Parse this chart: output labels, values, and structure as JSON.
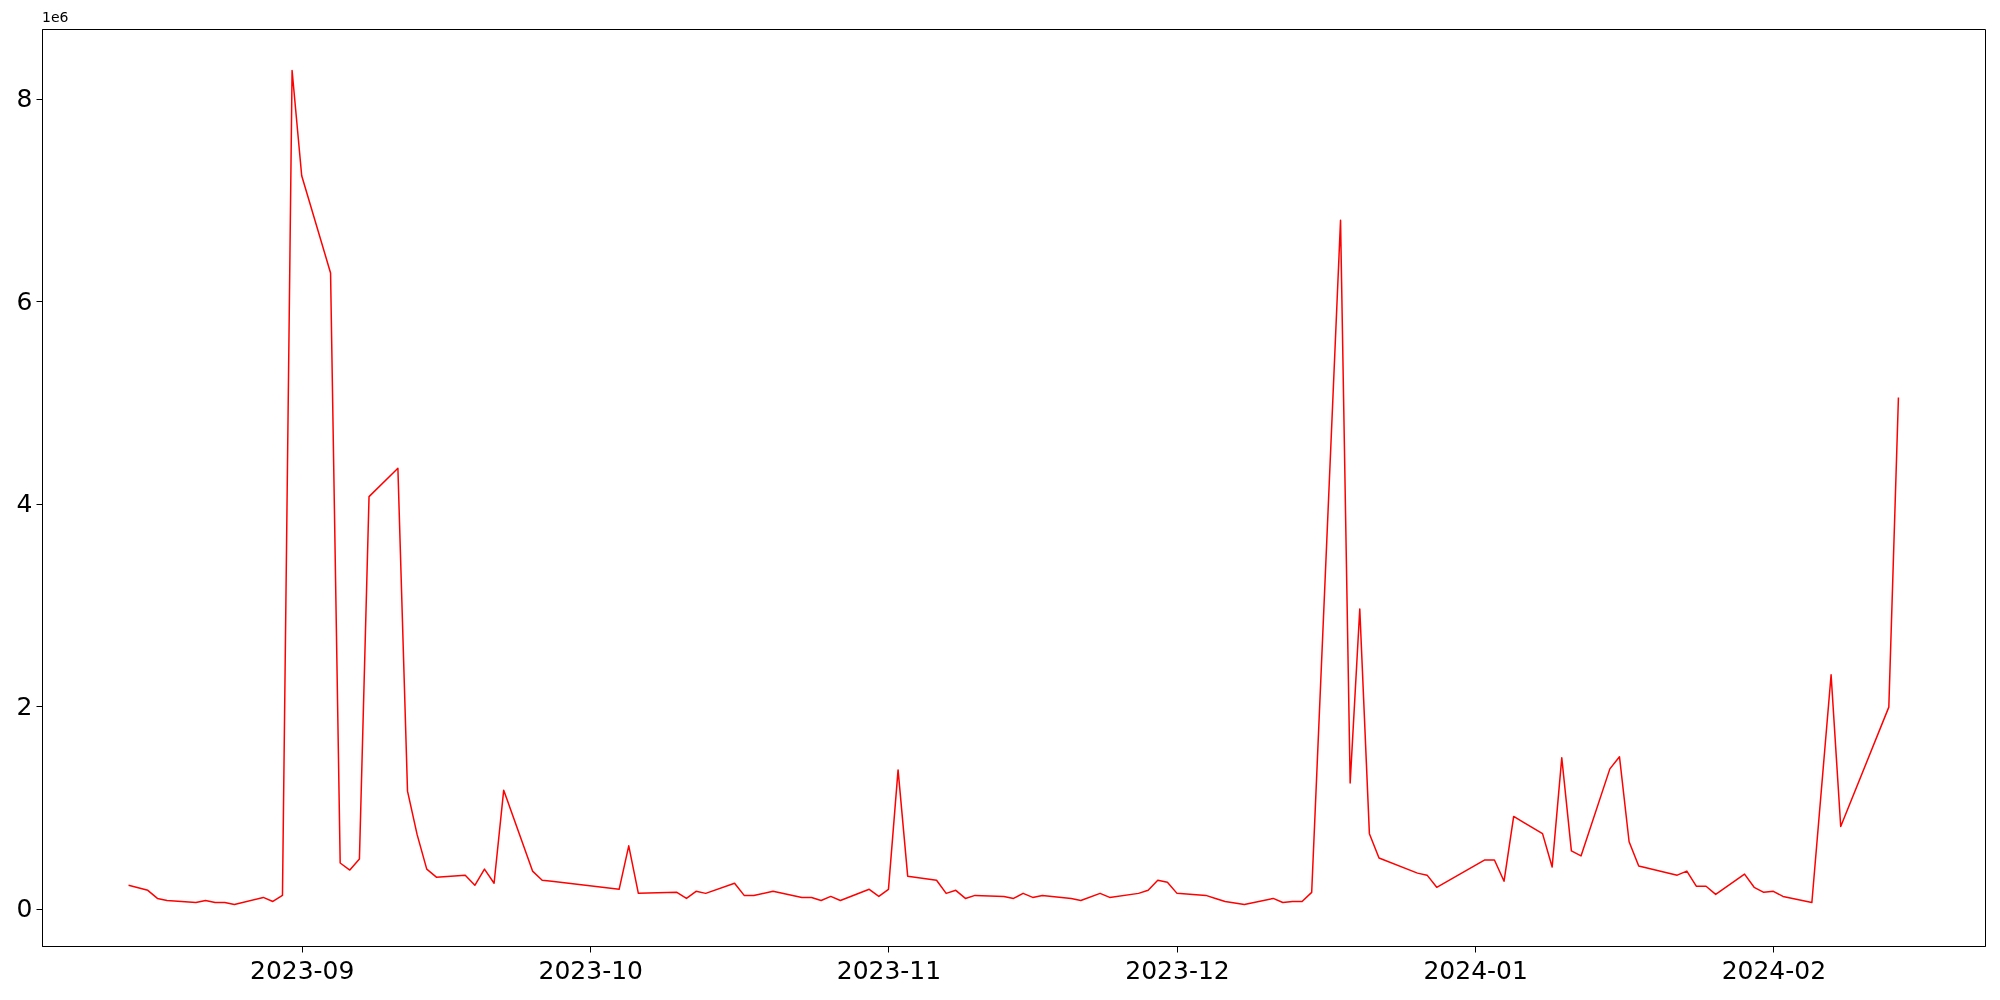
{
  "chart_data": {
    "type": "line",
    "x": [
      "2023-08-14",
      "2023-08-16",
      "2023-08-17",
      "2023-08-18",
      "2023-08-21",
      "2023-08-22",
      "2023-08-23",
      "2023-08-24",
      "2023-08-25",
      "2023-08-28",
      "2023-08-29",
      "2023-08-30",
      "2023-08-31",
      "2023-09-01",
      "2023-09-04",
      "2023-09-05",
      "2023-09-06",
      "2023-09-07",
      "2023-09-08",
      "2023-09-11",
      "2023-09-12",
      "2023-09-13",
      "2023-09-14",
      "2023-09-15",
      "2023-09-18",
      "2023-09-19",
      "2023-09-20",
      "2023-09-21",
      "2023-09-22",
      "2023-09-25",
      "2023-09-26",
      "2023-09-27",
      "2023-10-04",
      "2023-10-05",
      "2023-10-06",
      "2023-10-10",
      "2023-10-11",
      "2023-10-12",
      "2023-10-13",
      "2023-10-16",
      "2023-10-17",
      "2023-10-18",
      "2023-10-20",
      "2023-10-23",
      "2023-10-24",
      "2023-10-25",
      "2023-10-26",
      "2023-10-27",
      "2023-10-30",
      "2023-10-31",
      "2023-11-01",
      "2023-11-02",
      "2023-11-03",
      "2023-11-06",
      "2023-11-07",
      "2023-11-08",
      "2023-11-09",
      "2023-11-10",
      "2023-11-13",
      "2023-11-14",
      "2023-11-15",
      "2023-11-16",
      "2023-11-17",
      "2023-11-20",
      "2023-11-21",
      "2023-11-23",
      "2023-11-24",
      "2023-11-27",
      "2023-11-28",
      "2023-11-29",
      "2023-11-30",
      "2023-12-01",
      "2023-12-04",
      "2023-12-05",
      "2023-12-06",
      "2023-12-08",
      "2023-12-11",
      "2023-12-12",
      "2023-12-13",
      "2023-12-14",
      "2023-12-15",
      "2023-12-18",
      "2023-12-19",
      "2023-12-20",
      "2023-12-21",
      "2023-12-22",
      "2023-12-26",
      "2023-12-27",
      "2023-12-28",
      "2024-01-02",
      "2024-01-03",
      "2024-01-04",
      "2024-01-05",
      "2024-01-08",
      "2024-01-09",
      "2024-01-10",
      "2024-01-11",
      "2024-01-12",
      "2024-01-15",
      "2024-01-16",
      "2024-01-17",
      "2024-01-18",
      "2024-01-22",
      "2024-01-23",
      "2024-01-24",
      "2024-01-25",
      "2024-01-26",
      "2024-01-29",
      "2024-01-30",
      "2024-01-31",
      "2024-02-01",
      "2024-02-02",
      "2024-02-05",
      "2024-02-07",
      "2024-02-08",
      "2024-02-13",
      "2024-02-14"
    ],
    "series": [
      {
        "color": "#ff0000",
        "values": [
          0.23,
          0.18,
          0.1,
          0.08,
          0.06,
          0.08,
          0.06,
          0.06,
          0.04,
          0.11,
          0.07,
          0.13,
          8.28,
          7.24,
          6.28,
          0.45,
          0.38,
          0.49,
          4.07,
          4.35,
          1.16,
          0.73,
          0.39,
          0.31,
          0.33,
          0.23,
          0.39,
          0.25,
          1.17,
          0.37,
          0.28,
          0.27,
          0.19,
          0.62,
          0.15,
          0.16,
          0.1,
          0.17,
          0.15,
          0.25,
          0.13,
          0.13,
          0.17,
          0.11,
          0.11,
          0.08,
          0.12,
          0.08,
          0.19,
          0.12,
          0.19,
          1.37,
          0.32,
          0.28,
          0.15,
          0.18,
          0.1,
          0.13,
          0.12,
          0.1,
          0.15,
          0.11,
          0.13,
          0.1,
          0.08,
          0.15,
          0.11,
          0.15,
          0.18,
          0.28,
          0.26,
          0.15,
          0.13,
          0.1,
          0.07,
          0.04,
          0.1,
          0.06,
          0.07,
          0.07,
          0.16,
          6.8,
          1.24,
          2.96,
          0.74,
          0.5,
          0.35,
          0.33,
          0.21,
          0.48,
          0.48,
          0.27,
          0.91,
          0.74,
          0.41,
          1.49,
          0.57,
          0.52,
          1.38,
          1.5,
          0.66,
          0.42,
          0.33,
          0.37,
          0.22,
          0.22,
          0.14,
          0.34,
          0.21,
          0.16,
          0.17,
          0.12,
          0.06,
          2.31,
          0.81,
          1.99,
          5.05
        ]
      }
    ],
    "xlim": [
      "2023-08-05",
      "2024-02-23"
    ],
    "xticks": [
      {
        "value": "2023-09-01",
        "label": "2023-09"
      },
      {
        "value": "2023-10-01",
        "label": "2023-10"
      },
      {
        "value": "2023-11-01",
        "label": "2023-11"
      },
      {
        "value": "2023-12-01",
        "label": "2023-12"
      },
      {
        "value": "2024-01-01",
        "label": "2024-01"
      },
      {
        "value": "2024-02-01",
        "label": "2024-02"
      }
    ],
    "ylim": [
      -0.37,
      8.69
    ],
    "yticks": [
      0,
      2,
      4,
      6,
      8
    ],
    "grid": false,
    "annotations": [
      "1e6"
    ]
  }
}
